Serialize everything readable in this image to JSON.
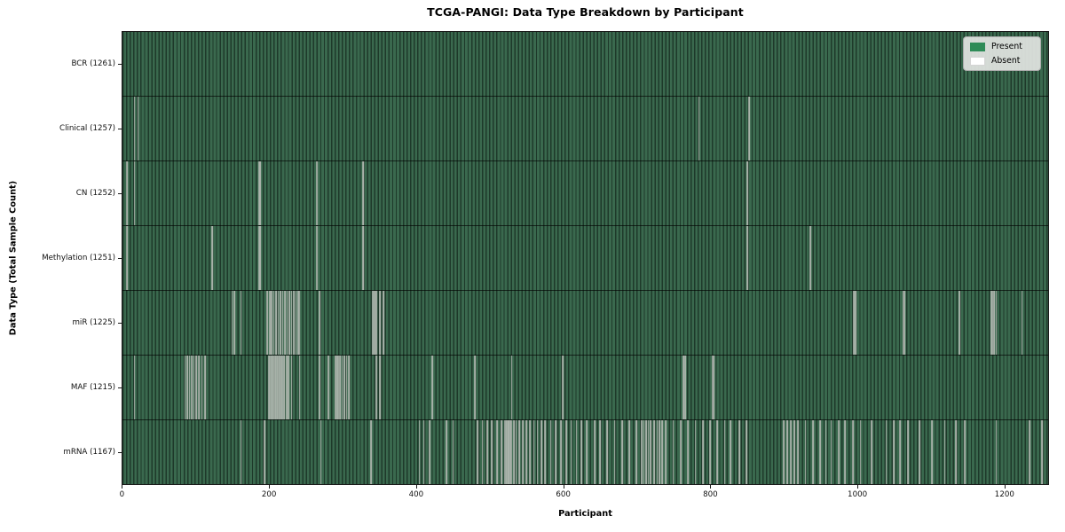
{
  "chart_data": {
    "type": "heatmap",
    "title": "TCGA-PANGI: Data Type Breakdown by Participant",
    "xlabel": "Participant",
    "ylabel": "Data Type (Total Sample Count)",
    "x_ticks": [
      0,
      200,
      400,
      600,
      800,
      1000,
      1200
    ],
    "x_range": [
      0,
      1261
    ],
    "total_participants": 1261,
    "grid": false,
    "legend": {
      "position": "upper right",
      "entries": [
        {
          "label": "Present",
          "color": "#2e8b57"
        },
        {
          "label": "Absent",
          "color": "#ffffff"
        }
      ]
    },
    "colors": {
      "present_fill": "#2e8b57",
      "bar_edge_dark": "#1e392a",
      "bar_face_light": "#3a694e",
      "absent_line": "#aeb6ae",
      "row_divider": "#000000",
      "axis": "#1a1a1a",
      "legend_bg": "#e1e4e1"
    },
    "rows": [
      {
        "data_type": "BCR",
        "label": "BCR (1261)",
        "present_count": 1261,
        "absent_count": 0,
        "absent_participants": []
      },
      {
        "data_type": "Clinical",
        "label": "Clinical (1257)",
        "present_count": 1257,
        "absent_count": 4,
        "absent_participants": [
          16,
          21,
          785,
          853
        ]
      },
      {
        "data_type": "CN",
        "label": "CN (1252)",
        "present_count": 1252,
        "absent_count": 9,
        "absent_participants": [
          6,
          16,
          186,
          187,
          264,
          265,
          327,
          328,
          851
        ]
      },
      {
        "data_type": "Methylation",
        "label": "Methylation (1251)",
        "present_count": 1251,
        "absent_count": 10,
        "absent_participants": [
          6,
          122,
          186,
          187,
          264,
          265,
          327,
          328,
          851,
          937
        ]
      },
      {
        "data_type": "miR",
        "label": "miR (1225)",
        "present_count": 1225,
        "absent_count": 36,
        "absent_participants": [
          149,
          152,
          161,
          197,
          200,
          203,
          206,
          209,
          212,
          215,
          218,
          221,
          224,
          227,
          230,
          233,
          236,
          239,
          241,
          268,
          340,
          342,
          344,
          346,
          350,
          355,
          996,
          998,
          1063,
          1065,
          1140,
          1183,
          1185,
          1187,
          1190,
          1225
        ]
      },
      {
        "data_type": "MAF",
        "label": "MAF (1215)",
        "present_count": 1215,
        "absent_count": 46,
        "absent_participants": [
          16,
          85,
          88,
          91,
          94,
          97,
          100,
          104,
          108,
          112,
          199,
          202,
          204,
          206,
          208,
          210,
          212,
          214,
          216,
          218,
          220,
          223,
          226,
          230,
          241,
          268,
          280,
          290,
          292,
          294,
          296,
          299,
          302,
          305,
          308,
          345,
          346,
          350,
          422,
          480,
          530,
          599,
          764,
          766,
          803,
          805
        ]
      },
      {
        "data_type": "mRNA",
        "label": "mRNA (1167)",
        "present_count": 1167,
        "absent_count": 94,
        "absent_participants": [
          161,
          193,
          270,
          338,
          404,
          410,
          418,
          441,
          450,
          483,
          490,
          497,
          503,
          510,
          516,
          520,
          522,
          524,
          526,
          528,
          530,
          533,
          536,
          540,
          545,
          550,
          555,
          560,
          565,
          570,
          575,
          583,
          590,
          597,
          604,
          611,
          618,
          625,
          632,
          643,
          650,
          660,
          670,
          680,
          690,
          700,
          707,
          710,
          713,
          716,
          719,
          724,
          728,
          731,
          735,
          740,
          750,
          760,
          770,
          780,
          790,
          800,
          810,
          820,
          828,
          840,
          850,
          900,
          905,
          910,
          915,
          920,
          930,
          940,
          950,
          958,
          965,
          975,
          984,
          995,
          1005,
          1020,
          1040,
          1050,
          1059,
          1070,
          1085,
          1102,
          1120,
          1135,
          1147,
          1190,
          1235,
          1252
        ]
      }
    ]
  }
}
